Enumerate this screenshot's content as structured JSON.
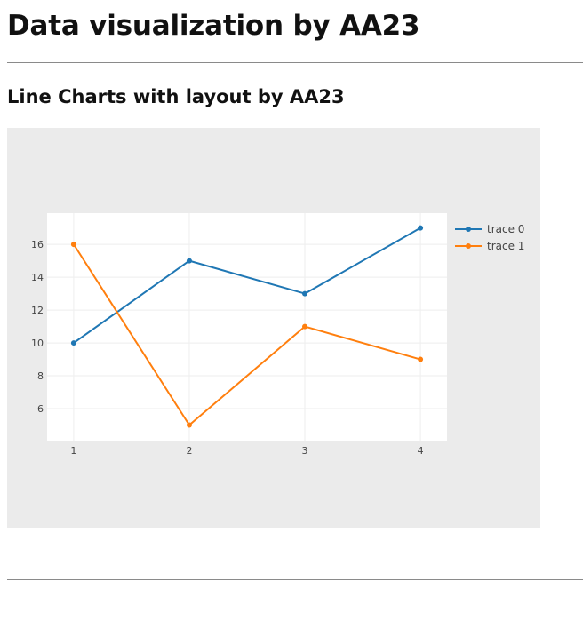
{
  "page": {
    "title": "Data visualization by AA23",
    "section_title": "Line Charts with layout by AA23"
  },
  "colors": {
    "paper_bg": "#ebebeb",
    "plot_bg": "#ffffff",
    "grid": "#eeeeee",
    "trace0": "#1f77b4",
    "trace1": "#ff7f0e"
  },
  "chart_data": {
    "type": "line",
    "x": [
      1,
      2,
      3,
      4
    ],
    "series": [
      {
        "name": "trace 0",
        "values": [
          10,
          15,
          13,
          17
        ],
        "color": "#1f77b4"
      },
      {
        "name": "trace 1",
        "values": [
          16,
          5,
          11,
          9
        ],
        "color": "#ff7f0e"
      }
    ],
    "x_ticks": [
      "1",
      "2",
      "3",
      "4"
    ],
    "y_ticks": [
      "6",
      "8",
      "10",
      "12",
      "14",
      "16"
    ],
    "xlim": [
      0.77,
      4.23
    ],
    "ylim": [
      4.0,
      17.9
    ],
    "mode": "lines+markers",
    "grid": true,
    "legend_position": "top-right"
  }
}
